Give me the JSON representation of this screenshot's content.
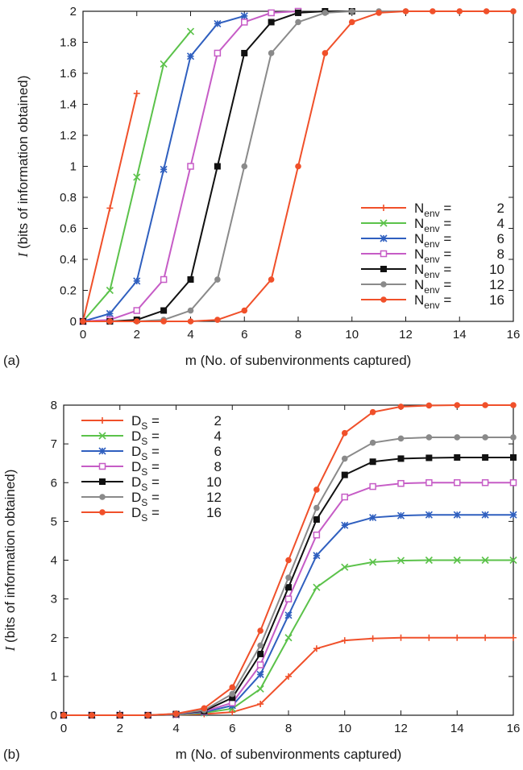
{
  "chart_data": [
    {
      "type": "line",
      "panel_label": "(a)",
      "xlabel": "m (No. of subenvironments captured)",
      "ylabel_italic": "I",
      "ylabel_rest": " (bits of information obtained)",
      "xlim": [
        0,
        16
      ],
      "ylim": [
        0,
        2
      ],
      "xticks": [
        "0",
        "2",
        "4",
        "6",
        "8",
        "10",
        "12",
        "14",
        "16"
      ],
      "yticks": [
        "0",
        "0.2",
        "0.4",
        "0.6",
        "0.8",
        "1",
        "1.2",
        "1.4",
        "1.6",
        "1.8",
        "2"
      ],
      "grid": false,
      "legend_position": "bottom-right",
      "series": [
        {
          "name": "N",
          "sub": "env",
          "value_label": "2",
          "color": "#f0502a",
          "marker": "plus",
          "x": [
            0,
            1,
            2
          ],
          "y": [
            0,
            0.73,
            1.47
          ]
        },
        {
          "name": "N",
          "sub": "env",
          "value_label": "4",
          "color": "#5bc24a",
          "marker": "cross",
          "x": [
            0,
            1,
            2,
            3,
            4
          ],
          "y": [
            0,
            0.2,
            0.93,
            1.66,
            1.87
          ]
        },
        {
          "name": "N",
          "sub": "env",
          "value_label": "6",
          "color": "#2f5fbf",
          "marker": "star",
          "x": [
            0,
            1,
            2,
            3,
            4,
            5,
            6
          ],
          "y": [
            0,
            0.05,
            0.26,
            0.98,
            1.71,
            1.92,
            1.97
          ]
        },
        {
          "name": "N",
          "sub": "env",
          "value_label": "8",
          "color": "#c65cc6",
          "marker": "square-open",
          "x": [
            0,
            1,
            2,
            3,
            4,
            5,
            6,
            7,
            8
          ],
          "y": [
            0,
            0.01,
            0.07,
            0.27,
            1.0,
            1.73,
            1.93,
            1.99,
            2.0
          ]
        },
        {
          "name": "N",
          "sub": "env",
          "value_label": "10",
          "color": "#111111",
          "marker": "square",
          "x": [
            0,
            1,
            2,
            3,
            4,
            5,
            6,
            7,
            8,
            9,
            10
          ],
          "y": [
            0,
            0,
            0.01,
            0.07,
            0.27,
            1.0,
            1.73,
            1.93,
            1.99,
            2.0,
            2.0
          ]
        },
        {
          "name": "N",
          "sub": "env",
          "value_label": "12",
          "color": "#8a8a8a",
          "marker": "circle",
          "x": [
            0,
            1,
            2,
            3,
            4,
            5,
            6,
            7,
            8,
            9,
            10,
            11,
            12
          ],
          "y": [
            0,
            0,
            0,
            0.01,
            0.07,
            0.27,
            1.0,
            1.73,
            1.93,
            1.99,
            2.0,
            2.0,
            2.0
          ]
        },
        {
          "name": "N",
          "sub": "env",
          "value_label": "16",
          "color": "#f0502a",
          "marker": "circle",
          "x": [
            0,
            1,
            2,
            3,
            4,
            5,
            6,
            7,
            8,
            9,
            10,
            11,
            12,
            13,
            14,
            15,
            16
          ],
          "y": [
            0,
            0,
            0,
            0,
            0,
            0.01,
            0.07,
            0.27,
            1.0,
            1.73,
            1.93,
            1.99,
            2.0,
            2.0,
            2.0,
            2.0,
            2.0
          ]
        }
      ]
    },
    {
      "type": "line",
      "panel_label": "(b)",
      "xlabel": "m (No. of subenvironments captured)",
      "ylabel_italic": "I",
      "ylabel_rest": " (bits of information obtained)",
      "xlim": [
        0,
        16
      ],
      "ylim": [
        0,
        8
      ],
      "xticks": [
        "0",
        "2",
        "4",
        "6",
        "8",
        "10",
        "12",
        "14",
        "16"
      ],
      "yticks": [
        "0",
        "1",
        "2",
        "3",
        "4",
        "5",
        "6",
        "7",
        "8"
      ],
      "grid": false,
      "legend_position": "top-left",
      "series": [
        {
          "name": "D",
          "sub": "S",
          "value_label": "2",
          "color": "#f0502a",
          "marker": "plus",
          "x": [
            0,
            1,
            2,
            3,
            4,
            5,
            6,
            7,
            8,
            9,
            10,
            11,
            12,
            13,
            14,
            15,
            16
          ],
          "y": [
            0,
            0,
            0,
            0,
            0.01,
            0.03,
            0.08,
            0.29,
            1.0,
            1.72,
            1.93,
            1.98,
            2.0,
            2.0,
            2.0,
            2.0,
            2.0
          ]
        },
        {
          "name": "D",
          "sub": "S",
          "value_label": "4",
          "color": "#5bc24a",
          "marker": "cross",
          "x": [
            0,
            1,
            2,
            3,
            4,
            5,
            6,
            7,
            8,
            9,
            10,
            11,
            12,
            13,
            14,
            15,
            16
          ],
          "y": [
            0,
            0,
            0,
            0,
            0.01,
            0.06,
            0.17,
            0.68,
            2.0,
            3.3,
            3.82,
            3.95,
            3.99,
            4.0,
            4.0,
            4.0,
            4.0
          ]
        },
        {
          "name": "D",
          "sub": "S",
          "value_label": "6",
          "color": "#2f5fbf",
          "marker": "star",
          "x": [
            0,
            1,
            2,
            3,
            4,
            5,
            6,
            7,
            8,
            9,
            10,
            11,
            12,
            13,
            14,
            15,
            16
          ],
          "y": [
            0,
            0,
            0,
            0,
            0.02,
            0.08,
            0.25,
            1.05,
            2.58,
            4.12,
            4.9,
            5.1,
            5.15,
            5.17,
            5.17,
            5.17,
            5.17
          ]
        },
        {
          "name": "D",
          "sub": "S",
          "value_label": "8",
          "color": "#c65cc6",
          "marker": "square-open",
          "x": [
            0,
            1,
            2,
            3,
            4,
            5,
            6,
            7,
            8,
            9,
            10,
            11,
            12,
            13,
            14,
            15,
            16
          ],
          "y": [
            0,
            0,
            0,
            0,
            0.02,
            0.1,
            0.32,
            1.3,
            3.0,
            4.65,
            5.63,
            5.9,
            5.98,
            6.0,
            6.0,
            6.0,
            6.0
          ]
        },
        {
          "name": "D",
          "sub": "S",
          "value_label": "10",
          "color": "#111111",
          "marker": "square",
          "x": [
            0,
            1,
            2,
            3,
            4,
            5,
            6,
            7,
            8,
            9,
            10,
            11,
            12,
            13,
            14,
            15,
            16
          ],
          "y": [
            0,
            0,
            0,
            0,
            0.03,
            0.11,
            0.45,
            1.58,
            3.3,
            5.05,
            6.2,
            6.54,
            6.62,
            6.64,
            6.65,
            6.65,
            6.65
          ]
        },
        {
          "name": "D",
          "sub": "S",
          "value_label": "12",
          "color": "#8a8a8a",
          "marker": "circle",
          "x": [
            0,
            1,
            2,
            3,
            4,
            5,
            6,
            7,
            8,
            9,
            10,
            11,
            12,
            13,
            14,
            15,
            16
          ],
          "y": [
            0,
            0,
            0,
            0,
            0.03,
            0.13,
            0.55,
            1.8,
            3.55,
            5.35,
            6.62,
            7.03,
            7.14,
            7.17,
            7.17,
            7.17,
            7.17
          ]
        },
        {
          "name": "D",
          "sub": "S",
          "value_label": "16",
          "color": "#f0502a",
          "marker": "circle",
          "x": [
            0,
            1,
            2,
            3,
            4,
            5,
            6,
            7,
            8,
            9,
            10,
            11,
            12,
            13,
            14,
            15,
            16
          ],
          "y": [
            0,
            0,
            0,
            0,
            0.04,
            0.18,
            0.72,
            2.18,
            4.0,
            5.82,
            7.28,
            7.82,
            7.96,
            7.99,
            8.0,
            8.0,
            8.0
          ]
        }
      ]
    }
  ]
}
